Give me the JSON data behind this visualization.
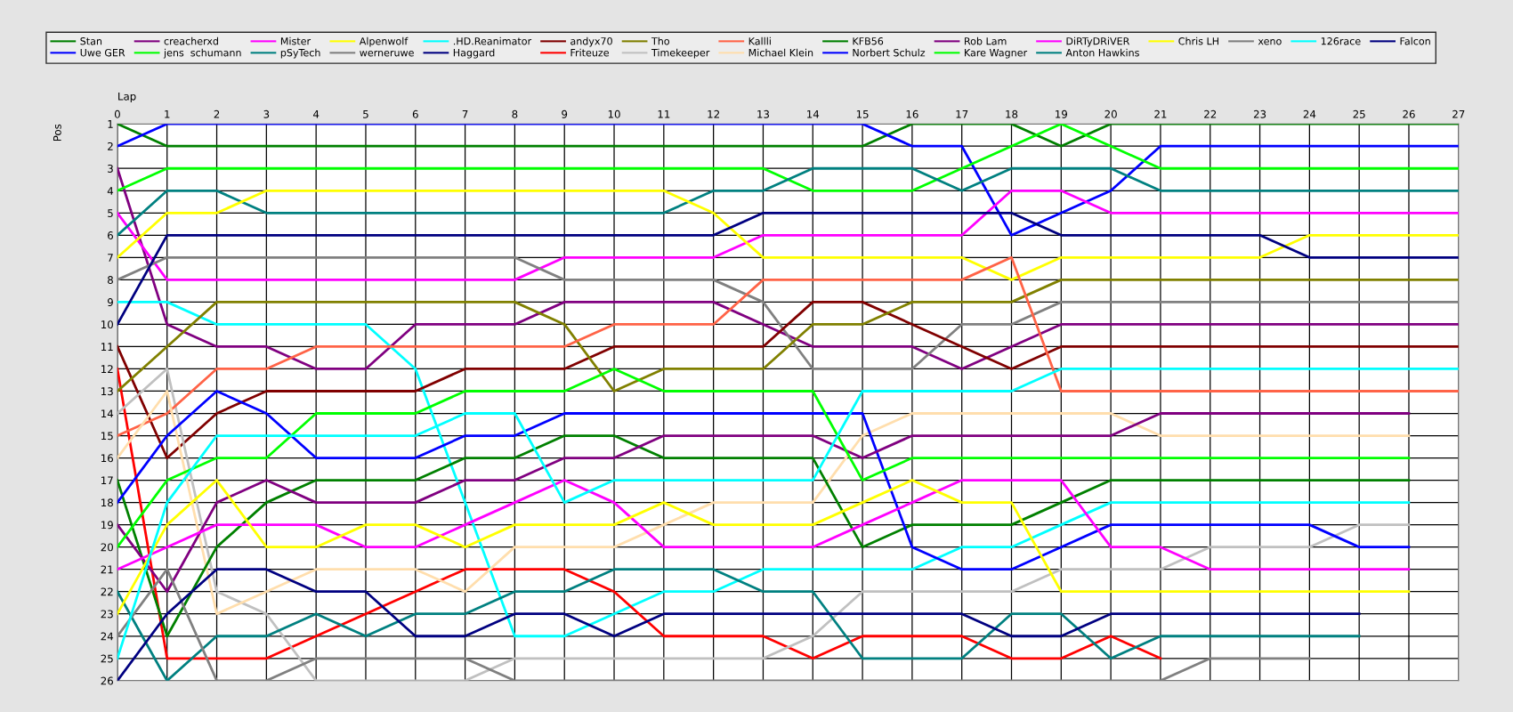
{
  "chart_data": {
    "type": "line",
    "xlabel": "Lap",
    "ylabel": "Pos",
    "x": [
      0,
      1,
      2,
      3,
      4,
      5,
      6,
      7,
      8,
      9,
      10,
      11,
      12,
      13,
      14,
      15,
      16,
      17,
      18,
      19,
      20,
      21,
      22,
      23,
      24,
      25,
      26,
      27
    ],
    "xlim": [
      0,
      27
    ],
    "xticks": [
      0,
      1,
      2,
      3,
      4,
      5,
      6,
      7,
      8,
      9,
      10,
      11,
      12,
      13,
      14,
      15,
      16,
      17,
      18,
      19,
      20,
      21,
      22,
      23,
      24,
      25,
      26,
      27
    ],
    "ylim": [
      26,
      1
    ],
    "yticks": [
      1,
      2,
      3,
      4,
      5,
      6,
      7,
      8,
      9,
      10,
      11,
      12,
      13,
      14,
      15,
      16,
      17,
      18,
      19,
      20,
      21,
      22,
      23,
      24,
      25,
      26
    ],
    "grid": true,
    "legend": "top",
    "marker": "none",
    "line_style": "solid",
    "series": [
      {
        "name": "Stan",
        "color": "#008000",
        "values": [
          1,
          2,
          2,
          2,
          2,
          2,
          2,
          2,
          2,
          2,
          2,
          2,
          2,
          2,
          2,
          2,
          1,
          1,
          1,
          2,
          1,
          1,
          1,
          1,
          1,
          1,
          1,
          1
        ]
      },
      {
        "name": "Uwe GER",
        "color": "#0000ff",
        "values": [
          2,
          1,
          1,
          1,
          1,
          1,
          1,
          1,
          1,
          1,
          1,
          1,
          1,
          1,
          1,
          1,
          2,
          2,
          6,
          5,
          4,
          2,
          2,
          2,
          2,
          2,
          2,
          2
        ]
      },
      {
        "name": "creacherxd",
        "color": "#800080",
        "values": [
          3,
          10,
          11,
          11,
          12,
          12,
          10,
          10,
          10,
          9,
          9,
          9,
          9,
          10,
          11,
          11,
          11,
          12,
          11,
          10,
          10,
          10,
          10,
          10,
          10,
          10,
          10,
          10
        ]
      },
      {
        "name": "jens  schumann",
        "color": "#00ff00",
        "values": [
          4,
          3,
          3,
          3,
          3,
          3,
          3,
          3,
          3,
          3,
          3,
          3,
          3,
          3,
          4,
          4,
          4,
          3,
          2,
          1,
          2,
          3,
          3,
          3,
          3,
          3,
          3,
          3
        ]
      },
      {
        "name": "Mister",
        "color": "#ff00ff",
        "values": [
          5,
          8,
          8,
          8,
          8,
          8,
          8,
          8,
          8,
          7,
          7,
          7,
          7,
          6,
          6,
          6,
          6,
          6,
          4,
          4,
          5,
          5,
          5,
          5,
          5,
          5,
          5,
          5
        ]
      },
      {
        "name": "pSyTech",
        "color": "#008080",
        "values": [
          6,
          4,
          4,
          5,
          5,
          5,
          5,
          5,
          5,
          5,
          5,
          5,
          4,
          4,
          3,
          3,
          3,
          4,
          3,
          3,
          3,
          4,
          4,
          4,
          4,
          4,
          4,
          4
        ]
      },
      {
        "name": "Alpenwolf",
        "color": "#ffff00",
        "values": [
          7,
          5,
          5,
          4,
          4,
          4,
          4,
          4,
          4,
          4,
          4,
          4,
          5,
          7,
          7,
          7,
          7,
          7,
          8,
          7,
          7,
          7,
          7,
          7,
          6,
          6,
          6,
          6
        ]
      },
      {
        "name": "werneruwe",
        "color": "#808080",
        "values": [
          8,
          7,
          7,
          7,
          7,
          7,
          7,
          7,
          7,
          8,
          8,
          8,
          8,
          9,
          12,
          12,
          12,
          10,
          10,
          9,
          9,
          9,
          9,
          9,
          9,
          9,
          9,
          9
        ]
      },
      {
        "name": ".HD.Reanimator",
        "color": "#00ffff",
        "values": [
          9,
          9,
          10,
          10,
          10,
          10,
          12,
          18,
          24,
          24,
          23,
          22,
          22,
          21,
          21,
          21,
          21,
          20,
          20,
          19,
          18,
          18,
          18,
          18,
          18,
          18,
          18,
          null
        ]
      },
      {
        "name": "Haggard",
        "color": "#000080",
        "values": [
          10,
          6,
          6,
          6,
          6,
          6,
          6,
          6,
          6,
          6,
          6,
          6,
          6,
          5,
          5,
          5,
          5,
          5,
          5,
          6,
          6,
          6,
          6,
          6,
          7,
          7,
          7,
          7
        ]
      },
      {
        "name": "andyx70",
        "color": "#800000",
        "values": [
          11,
          16,
          14,
          13,
          13,
          13,
          13,
          12,
          12,
          12,
          11,
          11,
          11,
          11,
          9,
          9,
          10,
          11,
          12,
          11,
          11,
          11,
          11,
          11,
          11,
          11,
          11,
          11
        ]
      },
      {
        "name": "Friteuze",
        "color": "#ff0000",
        "values": [
          12,
          25,
          25,
          25,
          24,
          23,
          22,
          21,
          21,
          21,
          22,
          24,
          24,
          24,
          25,
          24,
          24,
          24,
          25,
          25,
          24,
          25,
          null,
          null,
          null,
          null,
          null,
          null
        ]
      },
      {
        "name": "Tho",
        "color": "#808000",
        "values": [
          13,
          11,
          9,
          9,
          9,
          9,
          9,
          9,
          9,
          10,
          13,
          12,
          12,
          12,
          10,
          10,
          9,
          9,
          9,
          8,
          8,
          8,
          8,
          8,
          8,
          8,
          8,
          8
        ]
      },
      {
        "name": "Timekeeper",
        "color": "#c0c0c0",
        "values": [
          14,
          12,
          22,
          23,
          26,
          26,
          26,
          26,
          25,
          25,
          25,
          25,
          25,
          25,
          24,
          22,
          22,
          22,
          22,
          21,
          21,
          21,
          20,
          20,
          20,
          19,
          19,
          null
        ]
      },
      {
        "name": "Kallli",
        "color": "#ff6347",
        "values": [
          15,
          14,
          12,
          12,
          11,
          11,
          11,
          11,
          11,
          11,
          10,
          10,
          10,
          8,
          8,
          8,
          8,
          8,
          7,
          13,
          13,
          13,
          13,
          13,
          13,
          13,
          13,
          13
        ]
      },
      {
        "name": "Michael Klein",
        "color": "#ffdead",
        "values": [
          16,
          13,
          23,
          22,
          21,
          21,
          21,
          22,
          20,
          20,
          20,
          19,
          18,
          18,
          18,
          15,
          14,
          14,
          14,
          14,
          14,
          15,
          15,
          15,
          15,
          15,
          15,
          null
        ]
      },
      {
        "name": "KFB56",
        "color": "#008000",
        "values": [
          17,
          24,
          20,
          18,
          17,
          17,
          17,
          16,
          16,
          15,
          15,
          16,
          16,
          16,
          16,
          20,
          19,
          19,
          19,
          18,
          17,
          17,
          17,
          17,
          17,
          17,
          17,
          null
        ]
      },
      {
        "name": "Norbert Schulz",
        "color": "#0000ff",
        "values": [
          18,
          15,
          13,
          14,
          16,
          16,
          16,
          15,
          15,
          14,
          14,
          14,
          14,
          14,
          14,
          14,
          20,
          21,
          21,
          20,
          19,
          19,
          19,
          19,
          19,
          20,
          20,
          null
        ]
      },
      {
        "name": "Rob Lam",
        "color": "#800080",
        "values": [
          19,
          22,
          18,
          17,
          18,
          18,
          18,
          17,
          17,
          16,
          16,
          15,
          15,
          15,
          15,
          16,
          15,
          15,
          15,
          15,
          15,
          14,
          14,
          14,
          14,
          14,
          14,
          null
        ]
      },
      {
        "name": "Kare Wagner",
        "color": "#00ff00",
        "values": [
          20,
          17,
          16,
          16,
          14,
          14,
          14,
          13,
          13,
          13,
          12,
          13,
          13,
          13,
          13,
          17,
          16,
          16,
          16,
          16,
          16,
          16,
          16,
          16,
          16,
          16,
          16,
          null
        ]
      },
      {
        "name": "DiRTyDRiVER",
        "color": "#ff00ff",
        "values": [
          21,
          20,
          19,
          19,
          19,
          20,
          20,
          19,
          18,
          17,
          18,
          20,
          20,
          20,
          20,
          19,
          18,
          17,
          17,
          17,
          20,
          20,
          21,
          21,
          21,
          21,
          21,
          null
        ]
      },
      {
        "name": "Anton Hawkins",
        "color": "#008080",
        "values": [
          22,
          26,
          24,
          24,
          23,
          24,
          23,
          23,
          22,
          22,
          21,
          21,
          21,
          22,
          22,
          25,
          25,
          25,
          23,
          23,
          25,
          24,
          24,
          24,
          24,
          24,
          null,
          null
        ]
      },
      {
        "name": "Chris LH",
        "color": "#ffff00",
        "values": [
          23,
          19,
          17,
          20,
          20,
          19,
          19,
          20,
          19,
          19,
          19,
          18,
          19,
          19,
          19,
          18,
          17,
          18,
          18,
          22,
          22,
          22,
          22,
          22,
          22,
          22,
          22,
          null
        ]
      },
      {
        "name": "xeno",
        "color": "#808080",
        "values": [
          24,
          21,
          26,
          26,
          25,
          25,
          25,
          25,
          26,
          26,
          26,
          26,
          26,
          26,
          26,
          26,
          26,
          26,
          26,
          26,
          26,
          26,
          25,
          25,
          25,
          null,
          null,
          null
        ]
      },
      {
        "name": "126race",
        "color": "#00ffff",
        "values": [
          25,
          18,
          15,
          15,
          15,
          15,
          15,
          14,
          14,
          18,
          17,
          17,
          17,
          17,
          17,
          13,
          13,
          13,
          13,
          12,
          12,
          12,
          12,
          12,
          12,
          12,
          12,
          12
        ]
      },
      {
        "name": "Falcon",
        "color": "#000080",
        "values": [
          26,
          23,
          21,
          21,
          22,
          22,
          24,
          24,
          23,
          23,
          24,
          23,
          23,
          23,
          23,
          23,
          23,
          23,
          24,
          24,
          23,
          23,
          23,
          23,
          23,
          23,
          null,
          null
        ]
      }
    ]
  }
}
